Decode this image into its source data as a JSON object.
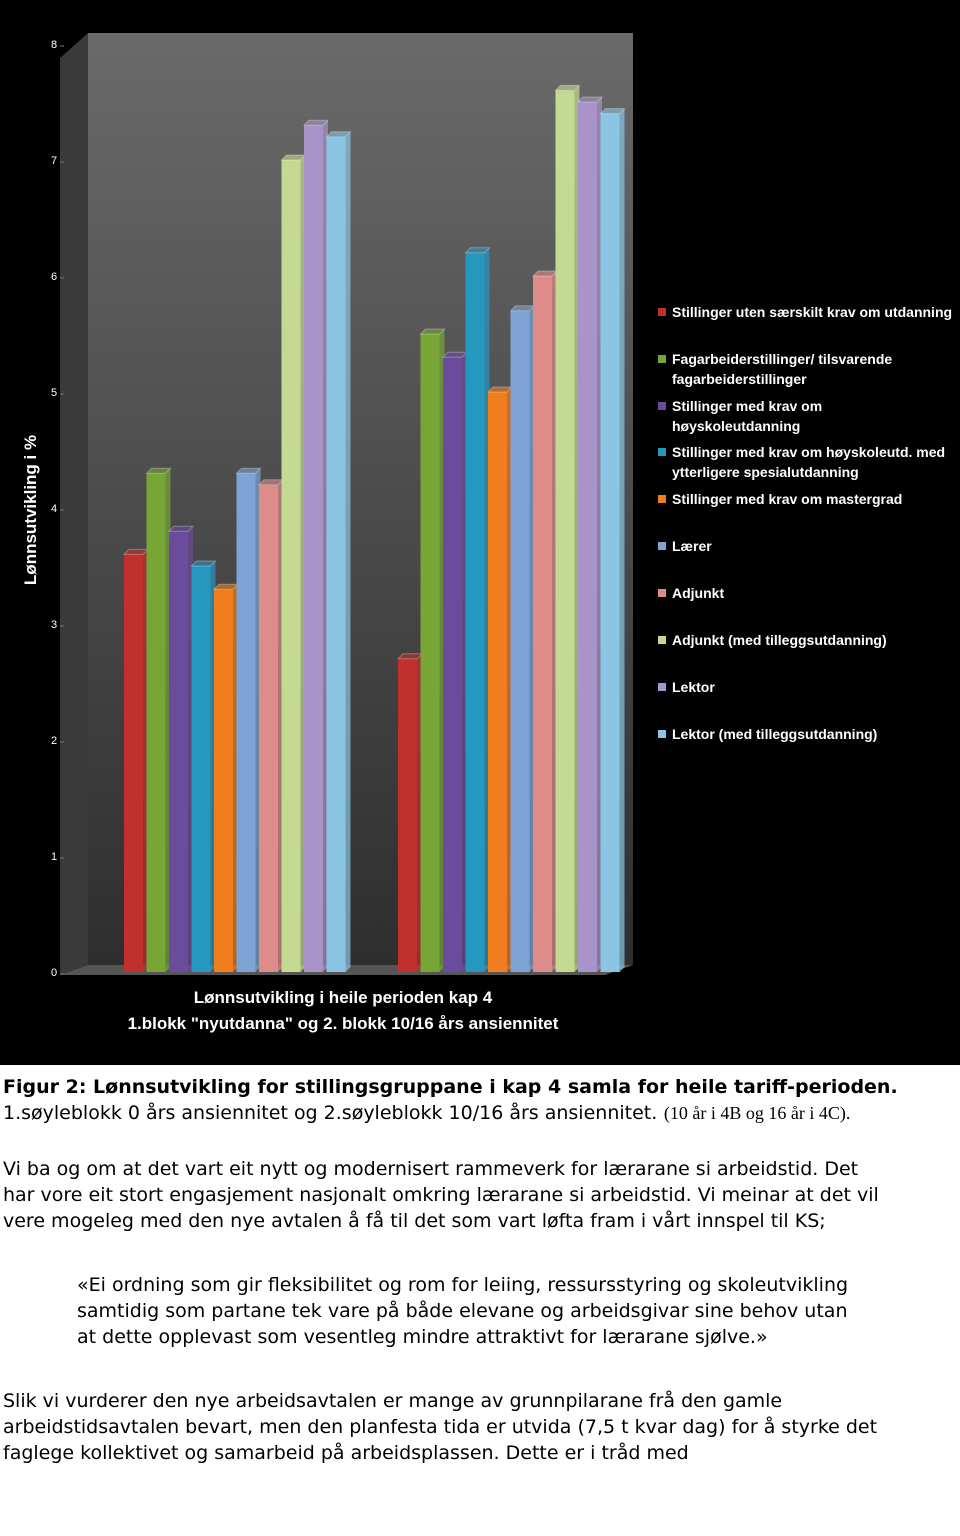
{
  "chart_data": {
    "type": "bar",
    "ylabel": "Lønnsutvikling i %",
    "xlabel": [
      "Lønnsutvikling i heile perioden kap 4",
      "1.blokk \"nyutdanna\" og 2. blokk 10/16 års ansiennitet"
    ],
    "categories": [
      null,
      null
    ],
    "ylim": [
      0,
      8
    ],
    "yticks": [
      0,
      1,
      2,
      3,
      4,
      5,
      6,
      7,
      8
    ],
    "grid": false,
    "legend": "right",
    "series": [
      {
        "name": "Stillinger uten særskilt krav om utdanning",
        "color": "#c0302c",
        "values": [
          3.6,
          2.7
        ]
      },
      {
        "name": "Fagarbeiderstillinger/ tilsvarende fagarbeiderstillinger",
        "color": "#78a636",
        "values": [
          4.3,
          5.5
        ]
      },
      {
        "name": "Stillinger med krav om høyskoleutdanning",
        "color": "#6b4c9c",
        "values": [
          3.8,
          5.3
        ]
      },
      {
        "name": "Stillinger med krav om høyskoleutd. med ytterligere spesialutdanning",
        "color": "#2698c0",
        "values": [
          3.5,
          6.2
        ]
      },
      {
        "name": "Stillinger med krav om mastergrad",
        "color": "#f07e1e",
        "values": [
          3.3,
          5.0
        ]
      },
      {
        "name": "Lærer",
        "color": "#7ea4d6",
        "values": [
          4.3,
          5.7
        ]
      },
      {
        "name": "Adjunkt",
        "color": "#de8c8a",
        "values": [
          4.2,
          6.0
        ]
      },
      {
        "name": "Adjunkt (med tilleggsutdanning)",
        "color": "#c4da92",
        "values": [
          7.0,
          7.6
        ]
      },
      {
        "name": "Lektor",
        "color": "#a894c8",
        "values": [
          7.3,
          7.5
        ]
      },
      {
        "name": "Lektor (med tilleggsutdanning)",
        "color": "#8ac6e4",
        "values": [
          7.2,
          7.4
        ]
      }
    ]
  },
  "document": {
    "caption": {
      "title": "Figur 2: Lønnsutvikling for stillingsgruppane i kap 4 samla for heile tariff-perioden.",
      "text": "1.søyleblokk 0 års ansiennitet og 2.søyleblokk 10/16 års ansiennitet.",
      "note": "(10 år i 4B og 16 år i 4C)."
    },
    "paragraphs": [
      "Vi ba og om at det vart eit nytt og modernisert rammeverk for lærarane si arbeidstid. Det har vore eit stort engasjement nasjonalt omkring lærarane si arbeidstid. Vi meinar at det vil vere mogeleg med den nye avtalen å få til det som vart løfta fram i vårt innspel til KS;"
    ],
    "quote": "«Ei ordning som gir fleksibilitet og rom for leiing, ressursstyring og skoleutvikling samtidig som partane tek vare på både elevane og arbeidsgivar sine behov utan at dette opplevast som vesentleg mindre attraktivt for lærarane sjølve.»",
    "closing": "Slik vi vurderer den nye arbeidsavtalen er mange av grunnpilarane frå den gamle arbeidstidsavtalen bevart, men den planfesta tida er utvida (7,5 t kvar dag) for å styrke det faglege kollektivet og samarbeid på arbeidsplassen. Dette er i tråd med"
  }
}
